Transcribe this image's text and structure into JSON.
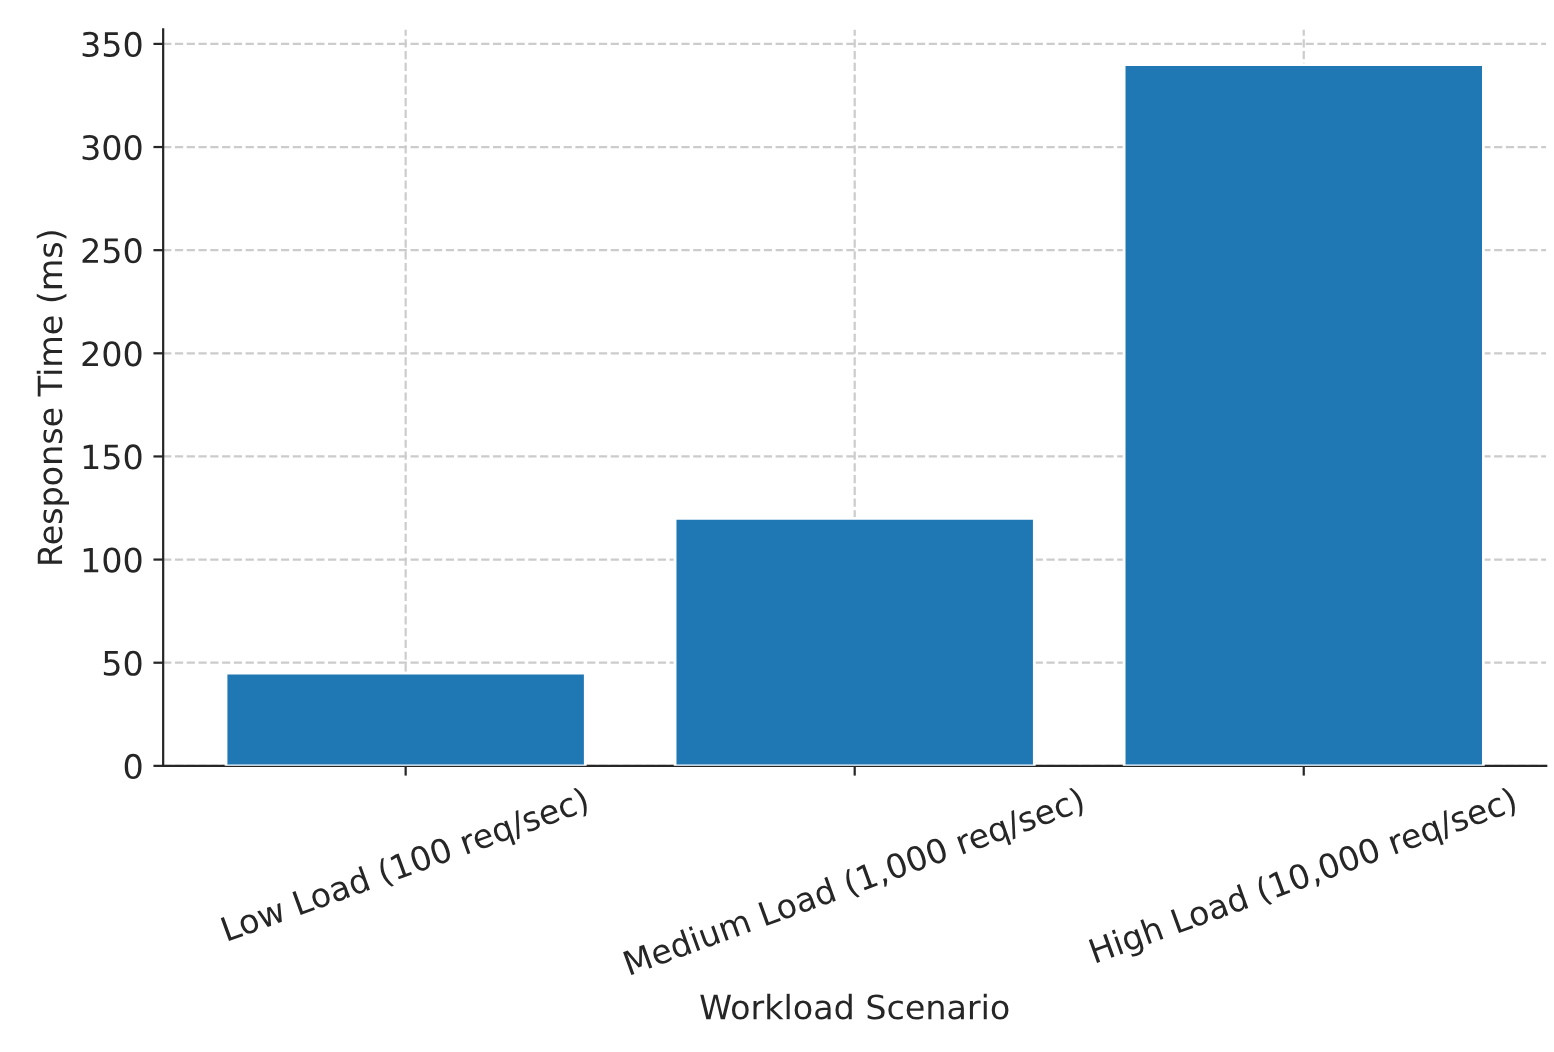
{
  "chart_data": {
    "type": "bar",
    "xlabel": "Workload Scenario",
    "ylabel": "Response Time (ms)",
    "categories": [
      "Low Load (100 req/sec)",
      "Medium Load (1,000 req/sec)",
      "High Load (10,000 req/sec)"
    ],
    "values": [
      45,
      120,
      340
    ],
    "color": "#1f77b4",
    "ylim": [
      0,
      357
    ],
    "yticks": [
      0,
      50,
      100,
      150,
      200,
      250,
      300,
      350
    ],
    "grid": true
  }
}
